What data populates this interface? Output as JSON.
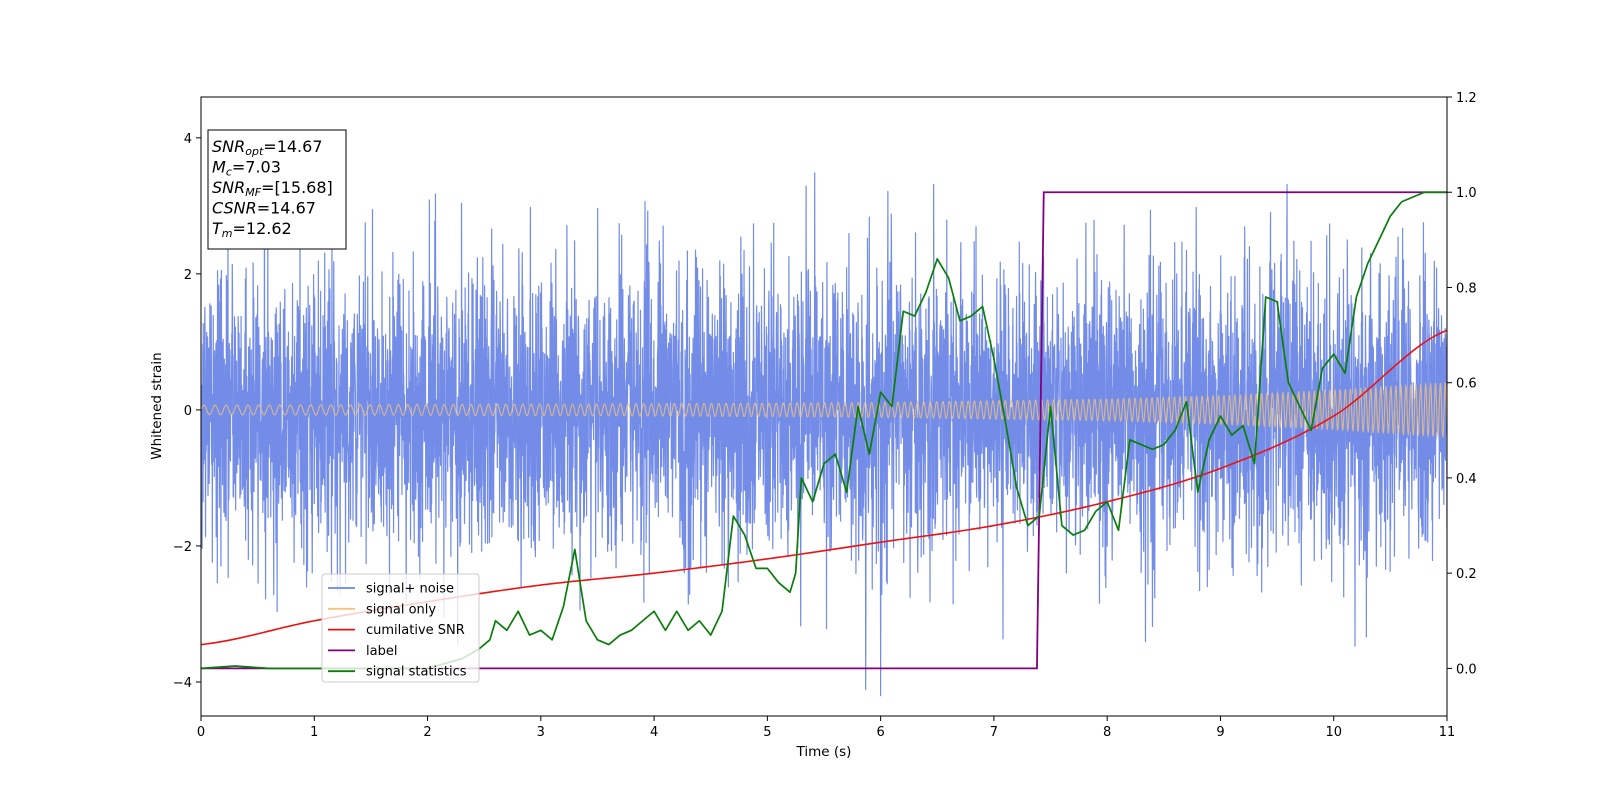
{
  "chart_data": {
    "type": "line",
    "xlabel": "Time (s)",
    "ylabel": "Whitened strain",
    "xlim": [
      0,
      11
    ],
    "ylim_left": [
      -4.5,
      4.6
    ],
    "ylim_right": [
      -0.1,
      1.2
    ],
    "xticks": [
      "0",
      "1",
      "2",
      "3",
      "4",
      "5",
      "6",
      "7",
      "8",
      "9",
      "10",
      "11"
    ],
    "yticks_left": [
      "−4",
      "−2",
      "0",
      "2",
      "4"
    ],
    "yticks_right": [
      "0.0",
      "0.2",
      "0.4",
      "0.6",
      "0.8",
      "1.0",
      "1.2"
    ],
    "grid": false,
    "stats_box": [
      {
        "var": "SNR",
        "sub": "opt",
        "rest": "=14.67"
      },
      {
        "var": "M",
        "sub": "c",
        "rest": "=7.03"
      },
      {
        "var": "SNR",
        "sub": "MF",
        "rest": "=[15.68]"
      },
      {
        "var": "CSNR",
        "sub": "",
        "rest": "=14.67"
      },
      {
        "var": "T",
        "sub": "m",
        "rest": "=12.62"
      }
    ],
    "legend": {
      "placement": "lower-left",
      "entries": [
        "signal+ noise",
        "signal only",
        "cumilative SNR",
        "label",
        "signal statistics"
      ]
    },
    "series": [
      {
        "name": "signal+ noise",
        "axis": "left",
        "color": "#6a86e6",
        "kind": "noise",
        "noise_std": 1.0,
        "max_abs": 4.2
      },
      {
        "name": "signal only",
        "axis": "left",
        "color": "#f5c27a",
        "envelope": {
          "t": [
            0,
            2,
            4,
            6,
            8,
            9,
            10,
            11
          ],
          "amp": [
            0.07,
            0.08,
            0.09,
            0.11,
            0.16,
            0.21,
            0.29,
            0.4
          ]
        }
      },
      {
        "name": "cumilative SNR",
        "axis": "right",
        "color": "#ee1111",
        "x": [
          0,
          1,
          2,
          3,
          4,
          5,
          6,
          7,
          8,
          9,
          10,
          11
        ],
        "y": [
          0.05,
          0.1,
          0.14,
          0.175,
          0.2,
          0.23,
          0.265,
          0.3,
          0.35,
          0.42,
          0.53,
          0.71
        ]
      },
      {
        "name": "label",
        "axis": "right",
        "color": "#800080",
        "x": [
          0,
          7.38,
          7.44,
          11
        ],
        "y": [
          0,
          0,
          1,
          1
        ]
      },
      {
        "name": "signal statistics",
        "axis": "right",
        "color": "#0a7d0a",
        "x": [
          0,
          0.3,
          0.6,
          1,
          1.5,
          2,
          2.3,
          2.45,
          2.55,
          2.6,
          2.7,
          2.8,
          2.9,
          3.0,
          3.1,
          3.2,
          3.3,
          3.4,
          3.5,
          3.6,
          3.7,
          3.8,
          3.9,
          4.0,
          4.1,
          4.2,
          4.3,
          4.4,
          4.5,
          4.6,
          4.7,
          4.8,
          4.9,
          5.0,
          5.1,
          5.2,
          5.25,
          5.3,
          5.4,
          5.5,
          5.6,
          5.7,
          5.8,
          5.9,
          6.0,
          6.1,
          6.2,
          6.3,
          6.4,
          6.5,
          6.6,
          6.7,
          6.8,
          6.9,
          7.0,
          7.1,
          7.2,
          7.3,
          7.4,
          7.5,
          7.6,
          7.7,
          7.8,
          7.9,
          8.0,
          8.1,
          8.2,
          8.3,
          8.4,
          8.5,
          8.6,
          8.7,
          8.8,
          8.9,
          9.0,
          9.1,
          9.2,
          9.3,
          9.4,
          9.5,
          9.6,
          9.7,
          9.8,
          9.9,
          10.0,
          10.1,
          10.2,
          10.3,
          10.4,
          10.5,
          10.6,
          10.7,
          10.8,
          10.9,
          11.0
        ],
        "y": [
          0.0,
          0.005,
          0.0,
          0.0,
          0.0,
          0.0,
          0.02,
          0.04,
          0.06,
          0.1,
          0.08,
          0.12,
          0.07,
          0.08,
          0.06,
          0.13,
          0.25,
          0.1,
          0.06,
          0.05,
          0.07,
          0.08,
          0.1,
          0.12,
          0.08,
          0.12,
          0.08,
          0.1,
          0.07,
          0.12,
          0.32,
          0.28,
          0.21,
          0.21,
          0.18,
          0.16,
          0.2,
          0.4,
          0.35,
          0.43,
          0.45,
          0.37,
          0.55,
          0.45,
          0.58,
          0.55,
          0.75,
          0.74,
          0.79,
          0.86,
          0.82,
          0.73,
          0.74,
          0.76,
          0.65,
          0.52,
          0.38,
          0.3,
          0.32,
          0.55,
          0.3,
          0.28,
          0.29,
          0.33,
          0.35,
          0.29,
          0.48,
          0.47,
          0.46,
          0.47,
          0.5,
          0.56,
          0.37,
          0.48,
          0.53,
          0.49,
          0.51,
          0.43,
          0.78,
          0.77,
          0.6,
          0.55,
          0.5,
          0.63,
          0.66,
          0.62,
          0.78,
          0.85,
          0.9,
          0.95,
          0.98,
          0.99,
          1.0,
          1.0,
          1.0
        ]
      }
    ]
  }
}
